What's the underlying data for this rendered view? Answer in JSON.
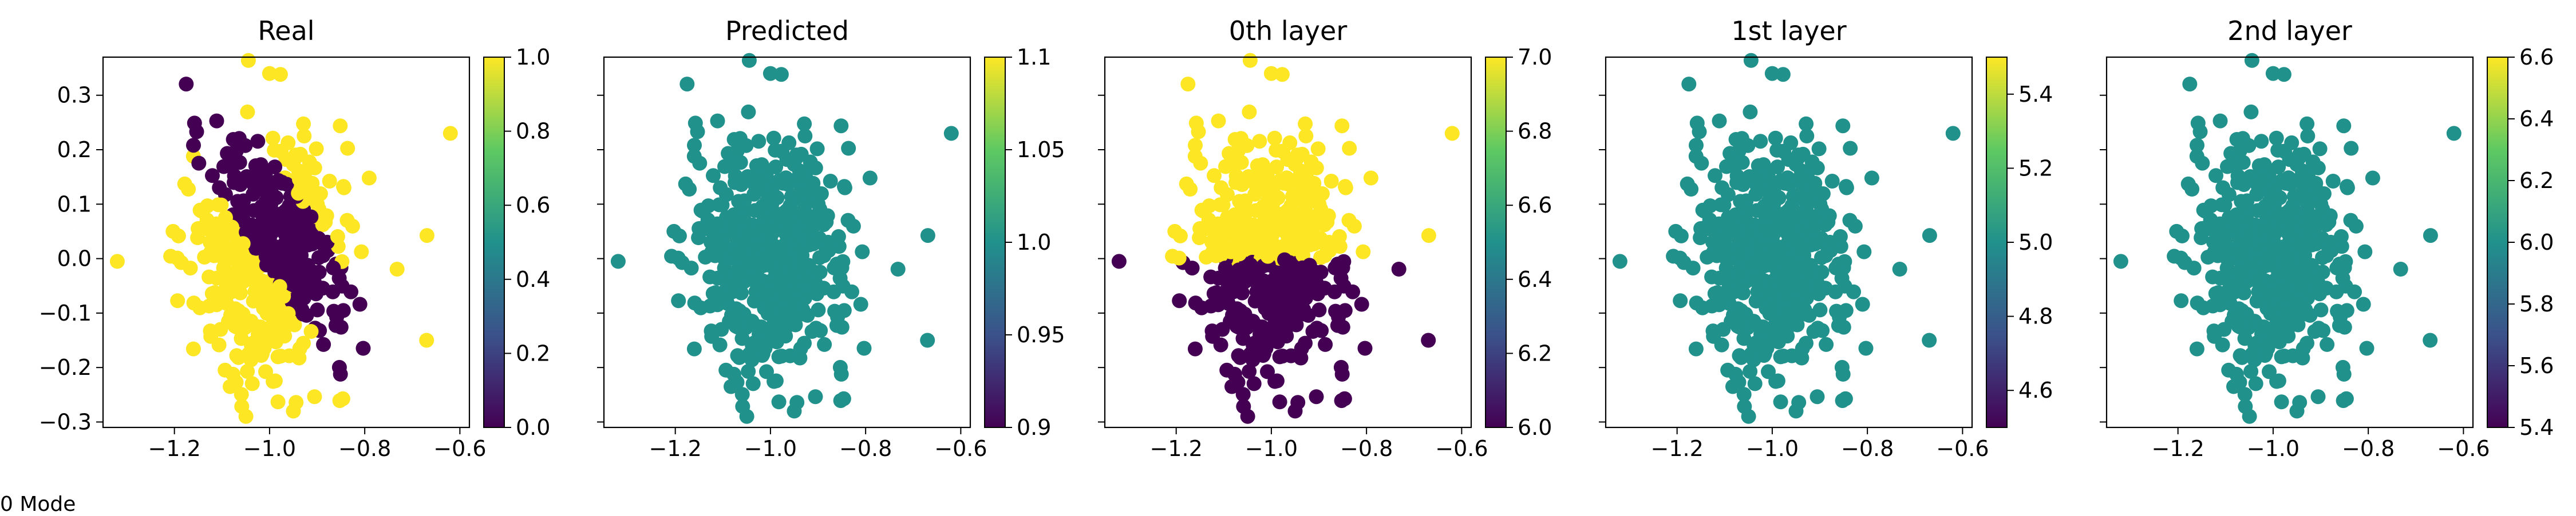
{
  "footer_text": "0 Mode",
  "colormap": [
    "#440154",
    "#3b528b",
    "#21918c",
    "#5ec962",
    "#fde725"
  ],
  "cloud": {
    "seed": 7,
    "count": 520,
    "center": [
      -1.0,
      0.0
    ],
    "std": [
      0.085,
      0.11
    ],
    "outliers": [
      [
        -0.62,
        0.23
      ],
      [
        -1.0,
        0.34
      ],
      [
        -0.67,
        -0.15
      ],
      [
        -0.95,
        -0.28
      ],
      [
        -1.32,
        -0.005
      ]
    ]
  },
  "chart_data": [
    {
      "type": "scatter",
      "title": "Real",
      "xlabel": "",
      "ylabel": "",
      "xlim": [
        -1.35,
        -0.58
      ],
      "ylim": [
        -0.31,
        0.37
      ],
      "xticks": [
        -1.2,
        -1.0,
        -0.8,
        -0.6
      ],
      "yticks": [
        -0.3,
        -0.2,
        -0.1,
        0.0,
        0.1,
        0.2,
        0.3
      ],
      "ytick_labels": true,
      "color_rule": "real_partition",
      "colorbar": {
        "min": 0.0,
        "max": 1.0,
        "ticks": [
          0.0,
          0.2,
          0.4,
          0.6,
          0.8,
          1.0
        ]
      },
      "grid": false
    },
    {
      "type": "scatter",
      "title": "Predicted",
      "xlabel": "",
      "ylabel": "",
      "xlim": [
        -1.35,
        -0.58
      ],
      "ylim": [
        -0.31,
        0.37
      ],
      "xticks": [
        -1.2,
        -1.0,
        -0.8,
        -0.6
      ],
      "yticks": [
        -0.3,
        -0.2,
        -0.1,
        0.0,
        0.1,
        0.2,
        0.3
      ],
      "ytick_labels": false,
      "color_rule": "constant_mid",
      "colorbar": {
        "min": 0.9,
        "max": 1.1,
        "ticks": [
          0.9,
          0.95,
          1.0,
          1.05,
          1.1
        ]
      },
      "grid": false
    },
    {
      "type": "scatter",
      "title": "0th layer",
      "xlabel": "",
      "ylabel": "",
      "xlim": [
        -1.35,
        -0.58
      ],
      "ylim": [
        -0.31,
        0.37
      ],
      "xticks": [
        -1.2,
        -1.0,
        -0.8,
        -0.6
      ],
      "yticks": [
        -0.3,
        -0.2,
        -0.1,
        0.0,
        0.1,
        0.2,
        0.3
      ],
      "ytick_labels": false,
      "color_rule": "horizontal_split",
      "colorbar": {
        "min": 6.0,
        "max": 7.0,
        "ticks": [
          6.0,
          6.2,
          6.4,
          6.6,
          6.8,
          7.0
        ]
      },
      "grid": false
    },
    {
      "type": "scatter",
      "title": "1st layer",
      "xlabel": "",
      "ylabel": "",
      "xlim": [
        -1.35,
        -0.58
      ],
      "ylim": [
        -0.31,
        0.37
      ],
      "xticks": [
        -1.2,
        -1.0,
        -0.8,
        -0.6
      ],
      "yticks": [
        -0.3,
        -0.2,
        -0.1,
        0.0,
        0.1,
        0.2,
        0.3
      ],
      "ytick_labels": false,
      "color_rule": "constant_mid",
      "colorbar": {
        "min": 4.5,
        "max": 5.5,
        "ticks": [
          4.6,
          4.8,
          5.0,
          5.2,
          5.4
        ]
      },
      "grid": false
    },
    {
      "type": "scatter",
      "title": "2nd layer",
      "xlabel": "",
      "ylabel": "",
      "xlim": [
        -1.35,
        -0.58
      ],
      "ylim": [
        -0.31,
        0.37
      ],
      "xticks": [
        -1.2,
        -1.0,
        -0.8,
        -0.6
      ],
      "yticks": [
        -0.3,
        -0.2,
        -0.1,
        0.0,
        0.1,
        0.2,
        0.3
      ],
      "ytick_labels": false,
      "color_rule": "constant_mid",
      "colorbar": {
        "min": 5.4,
        "max": 6.6,
        "ticks": [
          5.4,
          5.6,
          5.8,
          6.0,
          6.2,
          6.4,
          6.6
        ]
      },
      "grid": false
    }
  ]
}
